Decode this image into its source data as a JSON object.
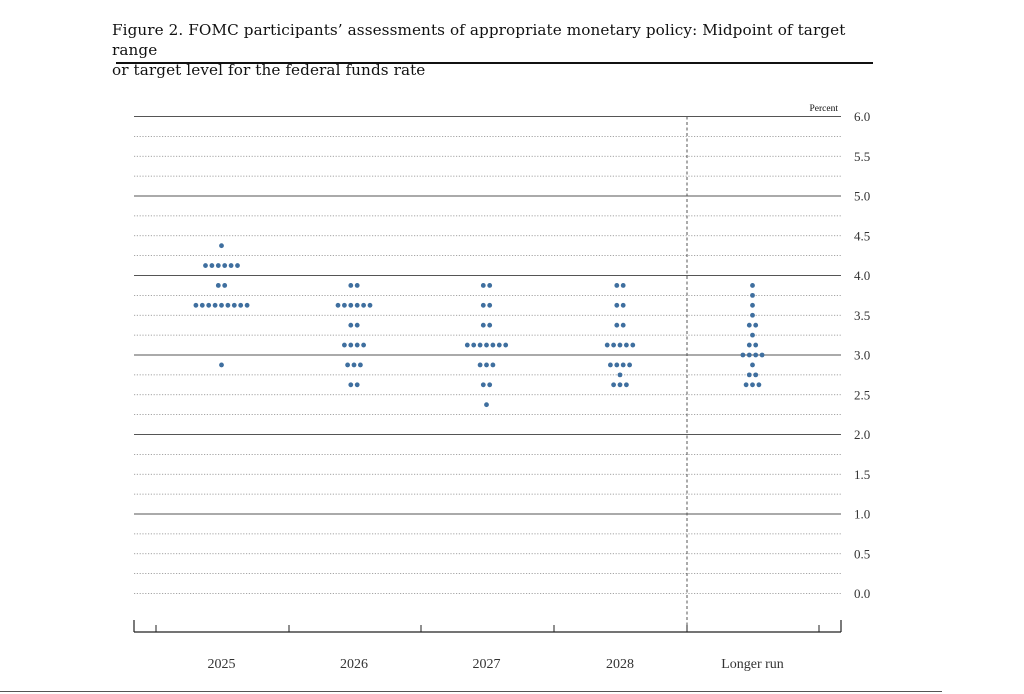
{
  "caption": {
    "line1": "Figure 2. FOMC participants’ assessments of appropriate monetary policy: Midpoint of target range",
    "line2": "or target level for the federal funds rate"
  },
  "chart_data": {
    "type": "scatter",
    "subtype": "dot-plot",
    "unit_label": "Percent",
    "ylim": [
      0.0,
      6.0
    ],
    "y_ticks": [
      "0.0",
      "0.5",
      "1.0",
      "1.5",
      "2.0",
      "2.5",
      "3.0",
      "3.5",
      "4.0",
      "4.5",
      "5.0",
      "5.5",
      "6.0"
    ],
    "categories": [
      "2025",
      "2026",
      "2027",
      "2028",
      "Longer run"
    ],
    "grid": true,
    "separator_before": "Longer run",
    "dot_color": "#3f6f9f",
    "series": [
      {
        "category": "2025",
        "points": [
          {
            "y": 4.375,
            "count": 1
          },
          {
            "y": 4.125,
            "count": 6
          },
          {
            "y": 3.875,
            "count": 2
          },
          {
            "y": 3.625,
            "count": 9
          },
          {
            "y": 2.875,
            "count": 1
          }
        ]
      },
      {
        "category": "2026",
        "points": [
          {
            "y": 3.875,
            "count": 2
          },
          {
            "y": 3.625,
            "count": 6
          },
          {
            "y": 3.375,
            "count": 2
          },
          {
            "y": 3.125,
            "count": 4
          },
          {
            "y": 2.875,
            "count": 3
          },
          {
            "y": 2.625,
            "count": 2
          }
        ]
      },
      {
        "category": "2027",
        "points": [
          {
            "y": 3.875,
            "count": 2
          },
          {
            "y": 3.625,
            "count": 2
          },
          {
            "y": 3.375,
            "count": 2
          },
          {
            "y": 3.125,
            "count": 7
          },
          {
            "y": 2.875,
            "count": 3
          },
          {
            "y": 2.625,
            "count": 2
          },
          {
            "y": 2.375,
            "count": 1
          }
        ]
      },
      {
        "category": "2028",
        "points": [
          {
            "y": 3.875,
            "count": 2
          },
          {
            "y": 3.625,
            "count": 2
          },
          {
            "y": 3.375,
            "count": 2
          },
          {
            "y": 3.125,
            "count": 5
          },
          {
            "y": 2.875,
            "count": 4
          },
          {
            "y": 2.75,
            "count": 1
          },
          {
            "y": 2.625,
            "count": 3
          }
        ]
      },
      {
        "category": "Longer run",
        "points": [
          {
            "y": 3.875,
            "count": 1
          },
          {
            "y": 3.75,
            "count": 1
          },
          {
            "y": 3.625,
            "count": 1
          },
          {
            "y": 3.5,
            "count": 1
          },
          {
            "y": 3.375,
            "count": 2
          },
          {
            "y": 3.25,
            "count": 1
          },
          {
            "y": 3.125,
            "count": 2
          },
          {
            "y": 3.0,
            "count": 4
          },
          {
            "y": 2.875,
            "count": 1
          },
          {
            "y": 2.75,
            "count": 2
          },
          {
            "y": 2.625,
            "count": 3
          }
        ]
      }
    ]
  }
}
